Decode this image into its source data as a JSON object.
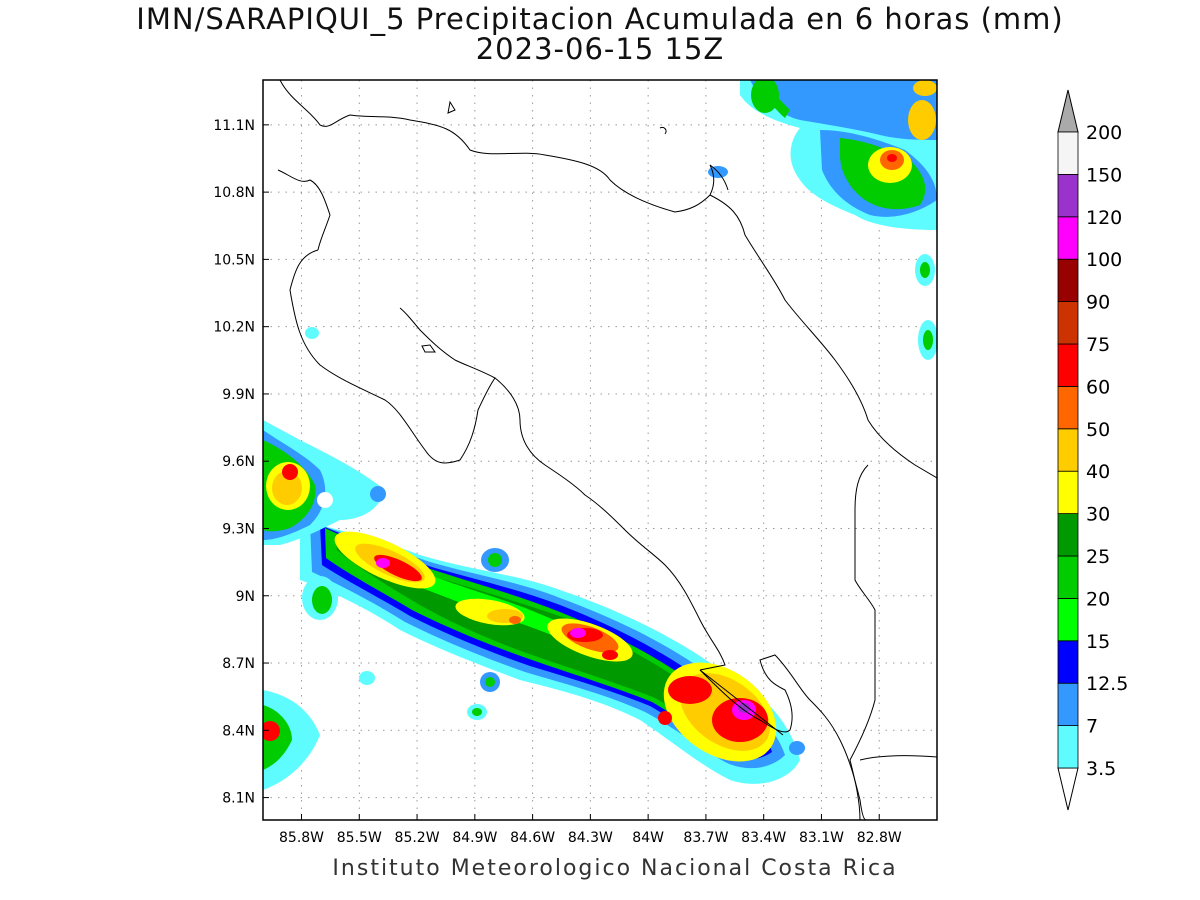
{
  "title_line1": "IMN/SARAPIQUI_5 Precipitacion Acumulada en 6 horas (mm)",
  "title_line2": "2023-06-15 15Z",
  "credit": "Instituto Meteorologico Nacional Costa Rica",
  "map": {
    "lon_range": [
      -86.0,
      -82.5
    ],
    "lat_range": [
      8.0,
      11.3
    ],
    "lon_ticks": [
      {
        "value": -85.8,
        "label": "85.8W"
      },
      {
        "value": -85.5,
        "label": "85.5W"
      },
      {
        "value": -85.2,
        "label": "85.2W"
      },
      {
        "value": -84.9,
        "label": "84.9W"
      },
      {
        "value": -84.6,
        "label": "84.6W"
      },
      {
        "value": -84.3,
        "label": "84.3W"
      },
      {
        "value": -84.0,
        "label": "84W"
      },
      {
        "value": -83.7,
        "label": "83.7W"
      },
      {
        "value": -83.4,
        "label": "83.4W"
      },
      {
        "value": -83.1,
        "label": "83.1W"
      },
      {
        "value": -82.8,
        "label": "82.8W"
      }
    ],
    "lat_ticks": [
      {
        "value": 11.1,
        "label": "11.1N"
      },
      {
        "value": 10.8,
        "label": "10.8N"
      },
      {
        "value": 10.5,
        "label": "10.5N"
      },
      {
        "value": 10.2,
        "label": "10.2N"
      },
      {
        "value": 9.9,
        "label": "9.9N"
      },
      {
        "value": 9.6,
        "label": "9.6N"
      },
      {
        "value": 9.3,
        "label": "9.3N"
      },
      {
        "value": 9.0,
        "label": "9N"
      },
      {
        "value": 8.7,
        "label": "8.7N"
      },
      {
        "value": 8.4,
        "label": "8.4N"
      },
      {
        "value": 8.1,
        "label": "8.1N"
      }
    ],
    "grid": "dotted"
  },
  "colorbar": {
    "levels": [
      "3.5",
      "7",
      "12.5",
      "15",
      "20",
      "25",
      "30",
      "40",
      "50",
      "60",
      "75",
      "90",
      "100",
      "120",
      "150",
      "200"
    ],
    "colors": [
      "#5ffcff",
      "#3399ff",
      "#0000ff",
      "#00ff00",
      "#00cc00",
      "#009900",
      "#ffff00",
      "#ffcc00",
      "#ff6600",
      "#ff0000",
      "#cc3300",
      "#990000",
      "#ff00ff",
      "#9933cc",
      "#f5f5f5"
    ],
    "top_arrow_color": "#aaaaaa",
    "bottom_arrow_color": "#ffffff"
  }
}
